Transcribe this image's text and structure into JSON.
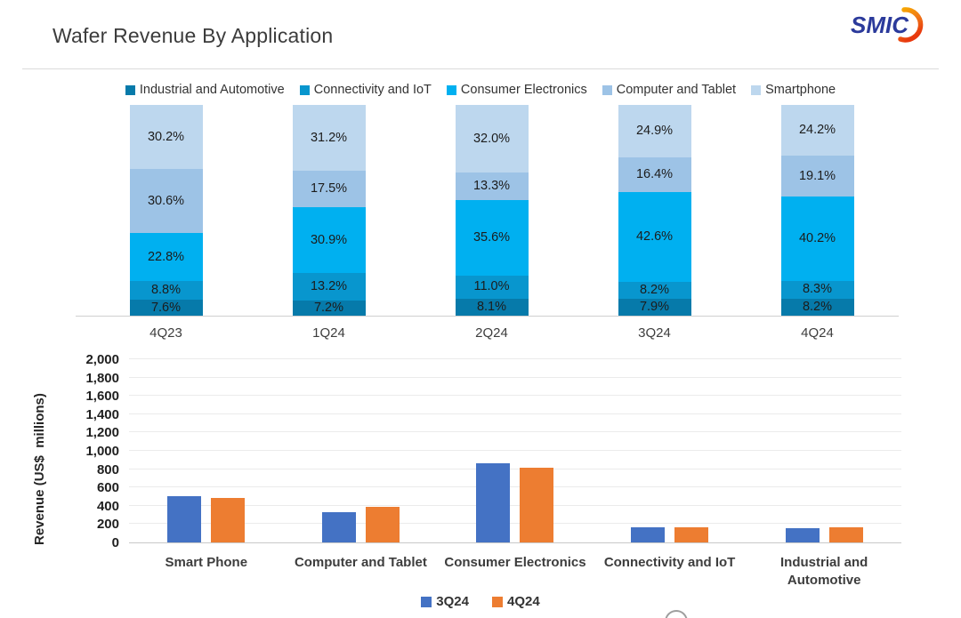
{
  "header": {
    "title": "Wafer Revenue By Application",
    "logo_text": "SMIC"
  },
  "chart_data": [
    {
      "type": "bar",
      "subtype": "stacked-100-percent",
      "categories": [
        "4Q23",
        "1Q24",
        "2Q24",
        "3Q24",
        "4Q24"
      ],
      "series": [
        {
          "name": "Industrial and Automotive",
          "color": "#067aaa",
          "values": [
            7.6,
            7.2,
            8.1,
            7.9,
            8.2
          ]
        },
        {
          "name": "Connectivity and IoT",
          "color": "#0896ce",
          "values": [
            8.8,
            13.2,
            11.0,
            8.2,
            8.3
          ]
        },
        {
          "name": "Consumer Electronics",
          "color": "#00b0f0",
          "values": [
            22.8,
            30.9,
            35.6,
            42.6,
            40.2
          ]
        },
        {
          "name": "Computer and Tablet",
          "color": "#9dc3e6",
          "values": [
            30.6,
            17.5,
            13.3,
            16.4,
            19.1
          ]
        },
        {
          "name": "Smartphone",
          "color": "#bdd7ee",
          "values": [
            30.2,
            31.2,
            32.0,
            24.9,
            24.2
          ]
        }
      ],
      "stack_order_bottom_to_top": [
        "Industrial and Automotive",
        "Connectivity and IoT",
        "Consumer Electronics",
        "Computer and Tablet",
        "Smartphone"
      ],
      "value_suffix": "%",
      "ylim": [
        0,
        100
      ],
      "grid": false,
      "legend_position": "top"
    },
    {
      "type": "bar",
      "subtype": "grouped",
      "categories": [
        "Smart Phone",
        "Computer and Tablet",
        "Consumer Electronics",
        "Connectivity and IoT",
        "Industrial and\nAutomotive"
      ],
      "series": [
        {
          "name": "3Q24",
          "color": "#4472c4",
          "values": [
            505,
            330,
            865,
            165,
            160
          ]
        },
        {
          "name": "4Q24",
          "color": "#ed7d31",
          "values": [
            490,
            385,
            815,
            170,
            165
          ]
        }
      ],
      "ylabel": "Revenue (US$  millions)",
      "ylim": [
        0,
        2000
      ],
      "ytick_step": 200,
      "grid": true,
      "legend_position": "bottom"
    }
  ]
}
